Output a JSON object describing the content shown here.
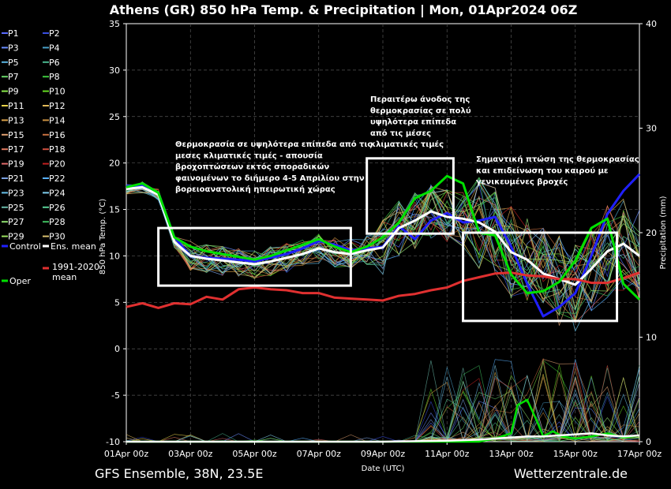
{
  "chart_data": {
    "type": "line",
    "title": "Athens  (GR)  850 hPa Temp. & Precipitation | Mon, 01Apr2024 06Z",
    "ylabel": "850 hPa Temp. (°C)",
    "y2label": "Precipitation (mm)",
    "xlabel": "Date (UTC)",
    "ylim": [
      -10,
      35
    ],
    "y2lim": [
      0,
      40
    ],
    "xlim": [
      0,
      16
    ],
    "yticks": [
      -10,
      -5,
      0,
      5,
      10,
      15,
      20,
      25,
      30,
      35
    ],
    "y2ticks": [
      0,
      10,
      20,
      30,
      40
    ],
    "xticks": [
      {
        "x": 0,
        "label": "01Apr 00z"
      },
      {
        "x": 2,
        "label": "03Apr 00z"
      },
      {
        "x": 4,
        "label": "05Apr 00z"
      },
      {
        "x": 6,
        "label": "07Apr 00z"
      },
      {
        "x": 8,
        "label": "09Apr 00z"
      },
      {
        "x": 10,
        "label": "11Apr 00z"
      },
      {
        "x": 12,
        "label": "13Apr 00z"
      },
      {
        "x": 14,
        "label": "15Apr 00z"
      },
      {
        "x": 16,
        "label": "17Apr 00z"
      }
    ],
    "grid": true,
    "legend_position": "left",
    "legend": [
      {
        "label": "P1",
        "color": "#5a6cff"
      },
      {
        "label": "P2",
        "color": "#3a50e0"
      },
      {
        "label": "P3",
        "color": "#6a8cff"
      },
      {
        "label": "P4",
        "color": "#4aa0c8"
      },
      {
        "label": "P5",
        "color": "#5ab4e0"
      },
      {
        "label": "P6",
        "color": "#4ab890"
      },
      {
        "label": "P7",
        "color": "#6ad66a"
      },
      {
        "label": "P8",
        "color": "#3ec83e"
      },
      {
        "label": "P9",
        "color": "#8ae84a"
      },
      {
        "label": "P10",
        "color": "#66dd22"
      },
      {
        "label": "P11",
        "color": "#e8d24a"
      },
      {
        "label": "P12",
        "color": "#e0b858"
      },
      {
        "label": "P13",
        "color": "#d8a048"
      },
      {
        "label": "P14",
        "color": "#c89040"
      },
      {
        "label": "P15",
        "color": "#e0a070"
      },
      {
        "label": "P16",
        "color": "#c87040"
      },
      {
        "label": "P17",
        "color": "#e07a60"
      },
      {
        "label": "P18",
        "color": "#d05040"
      },
      {
        "label": "P19",
        "color": "#e06a6a"
      },
      {
        "label": "P20",
        "color": "#c02020"
      },
      {
        "label": "P21",
        "color": "#7aa0e0"
      },
      {
        "label": "P22",
        "color": "#58b0ff"
      },
      {
        "label": "P23",
        "color": "#68c0e8"
      },
      {
        "label": "P24",
        "color": "#80d0f0"
      },
      {
        "label": "P25",
        "color": "#6ab8a8"
      },
      {
        "label": "P26",
        "color": "#5ad098"
      },
      {
        "label": "P27",
        "color": "#90e070"
      },
      {
        "label": "P28",
        "color": "#40c060"
      },
      {
        "label": "P29",
        "color": "#9ae060"
      },
      {
        "label": "P30",
        "color": "#d8c070"
      },
      {
        "label": "Control",
        "color": "#2020ff"
      },
      {
        "label": "Ens. mean",
        "color": "#ffffff"
      },
      {
        "label": "1991-2020 mean",
        "color": "#e03030"
      },
      {
        "label": "Oper",
        "color": "#00e000"
      }
    ],
    "series": [
      {
        "name": "Control",
        "color": "#2020ff",
        "width": 3,
        "x": [
          0,
          0.5,
          1,
          1.5,
          2,
          2.5,
          3,
          3.5,
          4,
          4.5,
          5,
          5.5,
          6,
          6.5,
          7,
          7.5,
          8,
          8.5,
          9,
          9.5,
          10,
          10.5,
          11,
          11.5,
          12,
          12.5,
          13,
          13.5,
          14,
          14.5,
          15,
          15.5,
          16
        ],
        "y": [
          17.5,
          17.6,
          16.8,
          12,
          10,
          9.8,
          9.7,
          9.6,
          9.4,
          9.8,
          10.2,
          10.8,
          11.6,
          11.2,
          10.6,
          10.8,
          11,
          13.2,
          11.8,
          13.8,
          14.6,
          13.6,
          13.8,
          14.2,
          11,
          7,
          3.5,
          4.5,
          6,
          10,
          14.5,
          17,
          18.8
        ]
      },
      {
        "name": "Ens. mean",
        "color": "#ffffff",
        "width": 3,
        "x": [
          0,
          0.5,
          1,
          1.5,
          2,
          2.5,
          3,
          3.5,
          4,
          4.5,
          5,
          5.5,
          6,
          6.5,
          7,
          7.5,
          8,
          8.5,
          9,
          9.5,
          10,
          10.5,
          11,
          11.5,
          12,
          12.5,
          13,
          13.5,
          14,
          14.5,
          15,
          15.5,
          16
        ],
        "y": [
          17.2,
          17.4,
          16.6,
          11.5,
          10,
          9.7,
          9.5,
          9.3,
          9.1,
          9.4,
          9.8,
          10.2,
          10.8,
          10.4,
          10.2,
          10.6,
          10.9,
          13,
          13.8,
          14.8,
          14.2,
          14,
          13.6,
          12.6,
          10.4,
          9.6,
          8.1,
          7.5,
          6.9,
          8.6,
          10.5,
          11.3,
          10
        ]
      },
      {
        "name": "1991-2020 mean",
        "color": "#e03030",
        "width": 3,
        "x": [
          0,
          0.5,
          1,
          1.5,
          2,
          2.5,
          3,
          3.5,
          4,
          4.5,
          5,
          5.5,
          6,
          6.5,
          7,
          7.5,
          8,
          8.5,
          9,
          9.5,
          10,
          10.5,
          11,
          11.5,
          12,
          12.5,
          13,
          13.5,
          14,
          14.5,
          15,
          15.5,
          16
        ],
        "y": [
          4.5,
          4.9,
          4.4,
          4.9,
          4.8,
          5.6,
          5.3,
          6.4,
          6.6,
          6.4,
          6.3,
          6,
          6,
          5.5,
          5.4,
          5.3,
          5.2,
          5.7,
          5.9,
          6.3,
          6.6,
          7.3,
          7.7,
          8.1,
          8.2,
          7.9,
          7.8,
          7.5,
          7.5,
          7.1,
          7.1,
          7.6,
          8.2
        ]
      },
      {
        "name": "Oper",
        "color": "#00e000",
        "width": 3,
        "x": [
          0,
          0.5,
          1,
          1.5,
          2,
          2.5,
          3,
          3.5,
          4,
          4.5,
          5,
          5.5,
          6,
          6.5,
          7,
          7.5,
          8,
          8.5,
          9,
          9.5,
          10,
          10.5,
          11,
          11.5,
          12,
          12.5,
          13,
          13.5,
          14,
          14.5,
          15,
          15.5,
          16
        ],
        "y": [
          17.4,
          17.8,
          16.8,
          12,
          11,
          10.5,
          10.2,
          9.9,
          9.6,
          10,
          10.6,
          11.2,
          11.8,
          11,
          10.4,
          11,
          12,
          13.6,
          16.2,
          17,
          18.6,
          17.8,
          12.5,
          12.2,
          8,
          6,
          6.2,
          7.2,
          9.5,
          13,
          14,
          7,
          5.3
        ]
      }
    ],
    "precip_series": [
      {
        "name": "Oper precipitation",
        "color": "#00e000",
        "x": [
          0,
          2,
          4,
          6,
          8,
          10,
          11,
          11.5,
          12,
          12.2,
          12.5,
          12.8,
          13,
          13.3,
          13.6,
          14,
          14.5,
          15,
          15.5,
          16
        ],
        "y": [
          0,
          0,
          0,
          0,
          0,
          0,
          0,
          0.3,
          0.8,
          3.5,
          4,
          2,
          0.5,
          1,
          0.5,
          0.3,
          0.5,
          0.8,
          0.4,
          0.6
        ]
      },
      {
        "name": "Ens. mean precipitation",
        "color": "#ffffff",
        "x": [
          0,
          2,
          4,
          6,
          8,
          10,
          11,
          11.5,
          12,
          12.5,
          13,
          13.5,
          14,
          14.5,
          15,
          15.5,
          16
        ],
        "y": [
          0,
          0,
          0,
          0,
          0,
          0.1,
          0.2,
          0.3,
          0.4,
          0.5,
          0.5,
          0.6,
          0.7,
          0.8,
          0.6,
          0.5,
          0.6
        ]
      }
    ],
    "annotations": [
      {
        "lines": [
          "Θερμοκρασία σε υψηλότερα επίπεδα από τις",
          "μεσες κλιματικές τιμές - απουσία",
          "βροχοπτώσεων εκτός σποραδικών",
          "φαινομένων το διήμερο 4-5 Απριλίου στην",
          "βορειοανατολική ηπειρωτική χώρας"
        ],
        "box": {
          "x0": 1,
          "x1": 7,
          "y0": 6.8,
          "y1": 13
        }
      },
      {
        "lines": [
          "Περαιτέρω άνοδος της",
          "θερμοκρασίας σε πολύ",
          "υψηλότερα επίπεδα",
          "από τις μέσες",
          "κλιματικές τιμές"
        ],
        "box": {
          "x0": 7.5,
          "x1": 10.2,
          "y0": 12.4,
          "y1": 20.5
        }
      },
      {
        "lines": [
          "Σημαντική πτώση της θερμοκρασίας",
          "και επιδείνωση του καιρού με",
          "γενικευμένες βροχές"
        ],
        "box": {
          "x0": 10.5,
          "x1": 15.3,
          "y0": 3,
          "y1": 12.5
        }
      }
    ]
  },
  "footer": {
    "left": "GFS Ensemble, 38N, 23.5E",
    "right": "Wetterzentrale.de"
  }
}
